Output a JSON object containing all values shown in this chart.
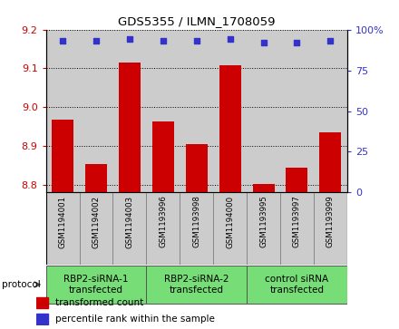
{
  "title": "GDS5355 / ILMN_1708059",
  "samples": [
    "GSM1194001",
    "GSM1194002",
    "GSM1194003",
    "GSM1193996",
    "GSM1193998",
    "GSM1194000",
    "GSM1193995",
    "GSM1193997",
    "GSM1193999"
  ],
  "bar_values": [
    8.967,
    8.853,
    9.115,
    8.962,
    8.905,
    9.107,
    8.803,
    8.843,
    8.935
  ],
  "percentile_values": [
    93,
    93,
    94,
    93,
    93,
    94,
    92,
    92,
    93
  ],
  "ylim_left": [
    8.78,
    9.2
  ],
  "ylim_right": [
    0,
    100
  ],
  "yticks_left": [
    8.8,
    8.9,
    9.0,
    9.1,
    9.2
  ],
  "yticks_right": [
    0,
    25,
    50,
    75,
    100
  ],
  "bar_color": "#cc0000",
  "dot_color": "#3333cc",
  "groups": [
    {
      "label": "RBP2-siRNA-1\ntransfected",
      "start": 0,
      "end": 3,
      "color": "#77dd77"
    },
    {
      "label": "RBP2-siRNA-2\ntransfected",
      "start": 3,
      "end": 6,
      "color": "#77dd77"
    },
    {
      "label": "control siRNA\ntransfected",
      "start": 6,
      "end": 9,
      "color": "#77dd77"
    }
  ],
  "tick_label_color_left": "#cc0000",
  "tick_label_color_right": "#3333cc",
  "bg_color": "#cccccc",
  "plot_bg": "#ffffff",
  "legend_bar_label": "transformed count",
  "legend_dot_label": "percentile rank within the sample",
  "protocol_label": "protocol"
}
